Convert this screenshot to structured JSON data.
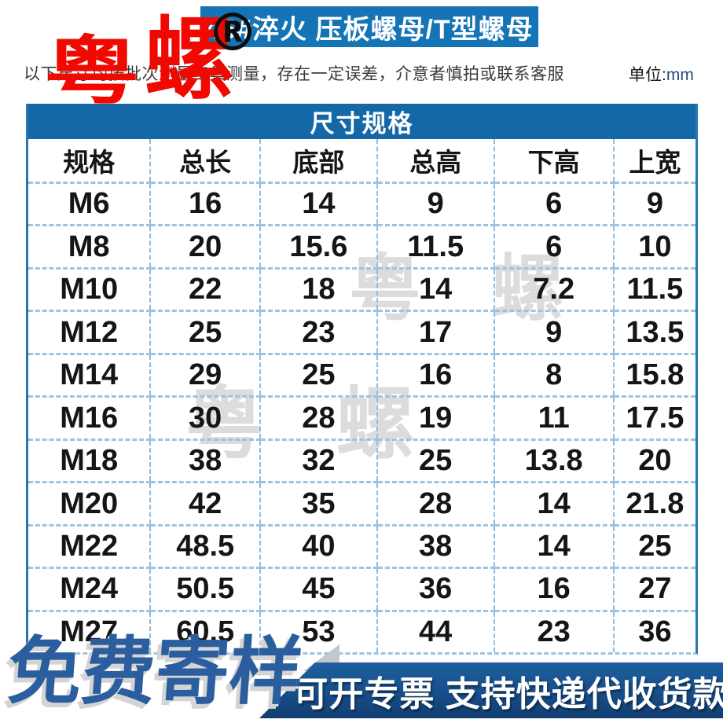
{
  "header": {
    "title": "45#淬火 压板螺母/T型螺母",
    "registered_mark": "®",
    "disclaimer": "以下尺寸均按批次测量工具测量，存在一定误差，介意者慎拍或联系客服",
    "unit_label": "单位:",
    "unit_value": "mm"
  },
  "watermark": {
    "char1": "粤",
    "char2": "螺",
    "faint_text": "粤 螺",
    "red_color": "#f10800",
    "faint_color": "#9e9e9e"
  },
  "table": {
    "title": "尺寸规格",
    "columns": [
      "规格",
      "总长",
      "底部",
      "总高",
      "下高",
      "上宽"
    ],
    "rows": [
      [
        "M6",
        "16",
        "14",
        "9",
        "6",
        "9"
      ],
      [
        "M8",
        "20",
        "15.6",
        "11.5",
        "6",
        "10"
      ],
      [
        "M10",
        "22",
        "18",
        "14",
        "7.2",
        "11.5"
      ],
      [
        "M12",
        "25",
        "23",
        "17",
        "9",
        "13.5"
      ],
      [
        "M14",
        "29",
        "25",
        "16",
        "8",
        "15.8"
      ],
      [
        "M16",
        "30",
        "28",
        "19",
        "11",
        "17.5"
      ],
      [
        "M18",
        "38",
        "32",
        "25",
        "13.8",
        "20"
      ],
      [
        "M20",
        "42",
        "35",
        "28",
        "14",
        "21.8"
      ],
      [
        "M22",
        "48.5",
        "40",
        "38",
        "14",
        "25"
      ],
      [
        "M24",
        "50.5",
        "45",
        "36",
        "16",
        "27"
      ],
      [
        "M27",
        "60.5",
        "53",
        "44",
        "23",
        "36"
      ]
    ]
  },
  "footer": {
    "free_sample": "免费寄样",
    "banner_text": "可开专票 支持快递代收货款"
  },
  "colors": {
    "title_bar_bg": "#1474b5",
    "table_band_bg": "#1568a8",
    "table_border": "#2577b2",
    "dashed_border": "#9cc3df",
    "banner_top": "#1e5f9e",
    "banner_bottom": "#123e71",
    "free_sample_blue": "#2b5e9e"
  }
}
